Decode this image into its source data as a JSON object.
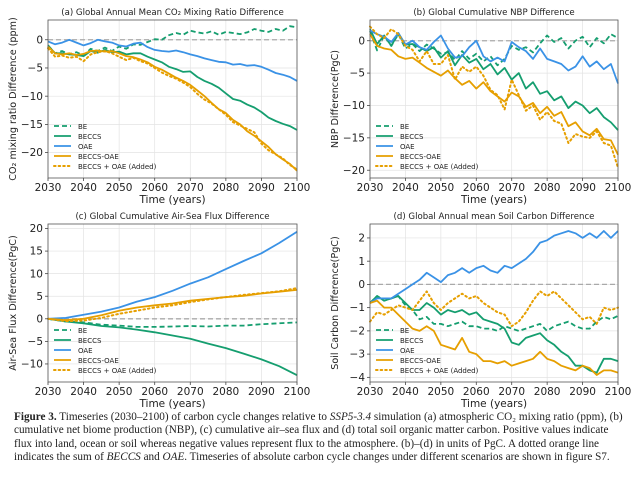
{
  "colors": {
    "BE": "#159e6f",
    "BECCS": "#159e6f",
    "OAE": "#3a92e6",
    "BECCS-OAE": "#e69f00",
    "BECCS + OAE (Added)": "#e69f00",
    "zero_line": "#a9a9a9",
    "grid": "#e3e3e3"
  },
  "chart_data": [
    {
      "id": "a",
      "type": "line",
      "title": "(a) Global Annual Mean CO₂ Mixing Ratio Difference",
      "xlabel": "Time (years)",
      "ylabel": "CO₂ mixing ratio Difference (ppm)",
      "xlim": [
        2030,
        2100
      ],
      "ylim": [
        -24.5,
        3.5
      ],
      "xticks": [
        2030,
        2040,
        2050,
        2060,
        2070,
        2080,
        2090,
        2100
      ],
      "yticks": [
        0,
        -5,
        -10,
        -15,
        -20
      ],
      "grid": true,
      "legend": "lower-left",
      "x": [
        2030,
        2032,
        2034,
        2036,
        2038,
        2040,
        2042,
        2044,
        2046,
        2048,
        2050,
        2052,
        2054,
        2056,
        2058,
        2060,
        2062,
        2064,
        2066,
        2068,
        2070,
        2072,
        2074,
        2076,
        2078,
        2080,
        2082,
        2084,
        2086,
        2088,
        2090,
        2092,
        2094,
        2096,
        2098,
        2100
      ],
      "series": [
        {
          "name": "BE",
          "style": "dashed",
          "values": [
            -1.0,
            -2.4,
            -2.0,
            -2.6,
            -2.2,
            -2.8,
            -1.6,
            -2.0,
            -1.4,
            -2.0,
            -1.2,
            -1.6,
            -0.8,
            -0.9,
            -0.4,
            0.1,
            0.0,
            0.8,
            1.2,
            0.9,
            1.6,
            1.3,
            1.1,
            1.5,
            0.9,
            1.4,
            1.2,
            1.0,
            1.3,
            1.9,
            1.6,
            1.4,
            1.9,
            1.6,
            2.4,
            2.2
          ]
        },
        {
          "name": "BECCS",
          "style": "solid",
          "values": [
            -1.0,
            -2.4,
            -2.4,
            -2.6,
            -2.7,
            -2.9,
            -2.0,
            -2.3,
            -1.8,
            -2.2,
            -2.1,
            -2.6,
            -2.4,
            -2.4,
            -3.0,
            -3.5,
            -4.0,
            -4.8,
            -5.2,
            -5.7,
            -5.6,
            -6.6,
            -7.3,
            -7.8,
            -8.5,
            -9.5,
            -10.5,
            -10.8,
            -11.5,
            -12.0,
            -12.8,
            -13.8,
            -14.4,
            -14.9,
            -15.3,
            -16.0
          ]
        },
        {
          "name": "OAE",
          "style": "solid",
          "values": [
            -0.3,
            -0.8,
            -0.5,
            0.0,
            -0.5,
            -1.0,
            -0.6,
            0.0,
            -0.3,
            -0.5,
            -1.0,
            -1.2,
            -0.7,
            -0.5,
            -1.3,
            -1.8,
            -2.0,
            -2.1,
            -1.9,
            -2.2,
            -2.6,
            -2.9,
            -3.3,
            -3.6,
            -3.9,
            -4.0,
            -4.4,
            -4.3,
            -4.6,
            -4.5,
            -4.8,
            -5.3,
            -5.9,
            -6.2,
            -6.6,
            -7.3
          ]
        },
        {
          "name": "BECCS-OAE",
          "style": "solid",
          "values": [
            -1.2,
            -2.4,
            -2.6,
            -2.4,
            -2.7,
            -2.5,
            -2.0,
            -1.9,
            -2.1,
            -2.0,
            -2.4,
            -2.9,
            -3.1,
            -3.5,
            -4.0,
            -4.8,
            -5.3,
            -6.0,
            -6.7,
            -7.3,
            -8.0,
            -9.0,
            -10.0,
            -11.2,
            -12.3,
            -13.0,
            -14.2,
            -15.0,
            -16.2,
            -17.0,
            -18.0,
            -19.0,
            -20.3,
            -21.2,
            -22.0,
            -23.2
          ]
        },
        {
          "name": "BECCS + OAE (Added)",
          "style": "dotted",
          "values": [
            -1.5,
            -3.0,
            -2.8,
            -3.2,
            -3.0,
            -3.8,
            -2.6,
            -2.2,
            -2.0,
            -2.4,
            -3.0,
            -3.6,
            -3.2,
            -3.8,
            -4.2,
            -5.0,
            -5.8,
            -6.4,
            -6.9,
            -7.6,
            -8.4,
            -9.6,
            -10.6,
            -11.3,
            -12.3,
            -13.3,
            -14.6,
            -15.2,
            -15.8,
            -16.4,
            -18.4,
            -19.6,
            -20.3,
            -21.0,
            -22.2,
            -23.0
          ]
        }
      ]
    },
    {
      "id": "b",
      "type": "line",
      "title": "(b) Global Cumulative NBP Difference",
      "xlabel": "Time (years)",
      "ylabel": "NBP Difference(PgC)",
      "xlim": [
        2030,
        2100
      ],
      "ylim": [
        -21.2,
        3.2
      ],
      "xticks": [
        2030,
        2040,
        2050,
        2060,
        2070,
        2080,
        2090,
        2100
      ],
      "yticks": [
        0,
        -5,
        -10,
        -15,
        -20
      ],
      "grid": true,
      "legend": "lower-left",
      "x": [
        2030,
        2032,
        2034,
        2036,
        2038,
        2040,
        2042,
        2044,
        2046,
        2048,
        2050,
        2052,
        2054,
        2056,
        2058,
        2060,
        2062,
        2064,
        2066,
        2068,
        2070,
        2072,
        2074,
        2076,
        2078,
        2080,
        2082,
        2084,
        2086,
        2088,
        2090,
        2092,
        2094,
        2096,
        2098,
        2100
      ],
      "series": [
        {
          "name": "BE",
          "style": "dashed",
          "values": [
            1.5,
            -1.5,
            0.8,
            -0.8,
            1.0,
            -1.2,
            -0.5,
            -1.6,
            -0.6,
            -1.2,
            -2.0,
            -1.8,
            -3.0,
            -1.6,
            -2.8,
            -2.0,
            -3.2,
            -2.4,
            -3.8,
            -2.8,
            -0.8,
            -1.4,
            -1.0,
            -1.8,
            -0.4,
            0.8,
            -0.2,
            0.4,
            -1.2,
            0.0,
            0.6,
            -1.0,
            0.4,
            -0.4,
            1.0,
            0.4
          ]
        },
        {
          "name": "BECCS",
          "style": "solid",
          "values": [
            1.8,
            -0.5,
            0.8,
            -0.8,
            1.2,
            -0.6,
            -0.5,
            -1.0,
            -1.6,
            -1.0,
            -2.6,
            -1.6,
            -3.8,
            -2.2,
            -3.4,
            -2.8,
            -4.4,
            -3.6,
            -5.2,
            -4.2,
            -6.0,
            -5.0,
            -7.4,
            -6.4,
            -8.2,
            -7.8,
            -9.2,
            -8.6,
            -10.4,
            -9.4,
            -10.0,
            -11.2,
            -10.4,
            -11.8,
            -12.6,
            -13.8
          ]
        },
        {
          "name": "OAE",
          "style": "solid",
          "values": [
            1.6,
            1.0,
            0.6,
            -0.2,
            1.2,
            -0.6,
            0.0,
            -1.0,
            -1.4,
            -0.2,
            0.8,
            -1.2,
            -2.6,
            -2.4,
            -1.0,
            0.0,
            -2.4,
            -3.2,
            -2.6,
            -3.2,
            -0.2,
            -1.0,
            -1.6,
            -2.8,
            -1.2,
            -2.8,
            -3.2,
            -3.6,
            -4.6,
            -4.0,
            -2.4,
            -4.0,
            -3.2,
            -4.4,
            -3.6,
            -6.6
          ]
        },
        {
          "name": "BECCS-OAE",
          "style": "solid",
          "values": [
            1.0,
            -0.8,
            -1.2,
            -1.4,
            -2.4,
            -2.8,
            -2.6,
            -3.4,
            -4.2,
            -4.8,
            -5.4,
            -4.6,
            -5.8,
            -6.8,
            -6.2,
            -7.4,
            -6.4,
            -7.8,
            -8.6,
            -9.4,
            -8.0,
            -8.6,
            -10.2,
            -9.6,
            -11.2,
            -10.2,
            -11.6,
            -11.0,
            -13.2,
            -12.6,
            -14.0,
            -14.6,
            -13.6,
            -15.2,
            -15.4,
            -17.6
          ]
        },
        {
          "name": "BECCS + OAE (Added)",
          "style": "dotted",
          "values": [
            2.2,
            1.0,
            0.4,
            1.8,
            1.0,
            -0.8,
            -1.4,
            -3.2,
            -1.6,
            -3.6,
            -3.6,
            -2.2,
            -6.0,
            -4.0,
            -4.8,
            -4.0,
            -5.4,
            -7.6,
            -8.4,
            -10.6,
            -6.0,
            -8.4,
            -10.8,
            -10.0,
            -12.2,
            -11.0,
            -12.4,
            -12.8,
            -15.8,
            -14.4,
            -14.8,
            -15.0,
            -14.0,
            -15.8,
            -16.2,
            -19.6
          ]
        }
      ]
    },
    {
      "id": "c",
      "type": "line",
      "title": "(c) Global Cumulative Air-Sea Flux Difference",
      "xlabel": "Time (years)",
      "ylabel": "Air-Sea Flux Difference(PgC)",
      "xlim": [
        2030,
        2100
      ],
      "ylim": [
        -14,
        21
      ],
      "xticks": [
        2030,
        2040,
        2050,
        2060,
        2070,
        2080,
        2090,
        2100
      ],
      "yticks": [
        20,
        15,
        10,
        5,
        0,
        -5,
        -10
      ],
      "grid": true,
      "legend": "lower-left",
      "x": [
        2030,
        2035,
        2040,
        2045,
        2050,
        2055,
        2060,
        2065,
        2070,
        2075,
        2080,
        2085,
        2090,
        2095,
        2100
      ],
      "series": [
        {
          "name": "BE",
          "style": "dashed",
          "values": [
            0.0,
            -0.6,
            -0.8,
            -1.3,
            -1.5,
            -1.8,
            -1.8,
            -1.7,
            -1.6,
            -1.7,
            -1.5,
            -1.5,
            -1.2,
            -1.0,
            -0.8
          ]
        },
        {
          "name": "BECCS",
          "style": "solid",
          "values": [
            0.0,
            -0.6,
            -1.0,
            -1.6,
            -1.9,
            -2.4,
            -3.0,
            -3.7,
            -4.4,
            -5.5,
            -6.5,
            -7.7,
            -9.0,
            -10.5,
            -12.5
          ]
        },
        {
          "name": "OAE",
          "style": "solid",
          "values": [
            0.0,
            0.2,
            0.9,
            1.6,
            2.5,
            3.8,
            4.8,
            6.2,
            7.8,
            9.2,
            11.0,
            12.8,
            14.5,
            16.8,
            19.3
          ]
        },
        {
          "name": "BECCS-OAE",
          "style": "solid",
          "values": [
            0.0,
            -0.3,
            0.0,
            0.8,
            1.8,
            2.5,
            3.0,
            3.4,
            4.0,
            4.4,
            4.8,
            5.1,
            5.6,
            6.0,
            6.4
          ]
        },
        {
          "name": "BECCS + OAE (Added)",
          "style": "dotted",
          "values": [
            0.0,
            -0.5,
            -0.4,
            0.2,
            1.1,
            1.8,
            2.5,
            3.0,
            3.7,
            4.3,
            4.8,
            5.3,
            5.7,
            6.1,
            6.8
          ]
        }
      ]
    },
    {
      "id": "d",
      "type": "line",
      "title": "(d) Global Annual mean Soil Carbon Difference",
      "xlabel": "Time (years)",
      "ylabel": "Soil Carbon Difference(PgC)",
      "xlim": [
        2030,
        2100
      ],
      "ylim": [
        -4.2,
        2.6
      ],
      "xticks": [
        2030,
        2040,
        2050,
        2060,
        2070,
        2080,
        2090,
        2100
      ],
      "yticks": [
        2,
        1,
        0,
        -1,
        -2,
        -3,
        -4
      ],
      "grid": true,
      "legend": "lower-left",
      "x": [
        2030,
        2032,
        2034,
        2036,
        2038,
        2040,
        2042,
        2044,
        2046,
        2048,
        2050,
        2052,
        2054,
        2056,
        2058,
        2060,
        2062,
        2064,
        2066,
        2068,
        2070,
        2072,
        2074,
        2076,
        2078,
        2080,
        2082,
        2084,
        2086,
        2088,
        2090,
        2092,
        2094,
        2096,
        2098,
        2100
      ],
      "series": [
        {
          "name": "BE",
          "style": "dashed",
          "values": [
            -0.8,
            -0.5,
            -0.7,
            -0.6,
            -0.5,
            -0.9,
            -1.1,
            -1.5,
            -1.4,
            -1.7,
            -1.7,
            -1.8,
            -1.7,
            -1.6,
            -1.8,
            -1.8,
            -1.9,
            -1.9,
            -2.0,
            -1.8,
            -1.9,
            -2.0,
            -1.9,
            -1.8,
            -1.7,
            -2.0,
            -1.8,
            -1.7,
            -1.6,
            -1.8,
            -1.9,
            -1.9,
            -1.6,
            -1.4,
            -1.5,
            -1.35
          ]
        },
        {
          "name": "BECCS",
          "style": "solid",
          "values": [
            -0.8,
            -0.5,
            -0.7,
            -0.6,
            -0.5,
            -0.8,
            -1.1,
            -1.1,
            -0.8,
            -1.0,
            -1.3,
            -1.1,
            -1.2,
            -1.1,
            -1.3,
            -1.2,
            -1.5,
            -1.6,
            -1.7,
            -1.9,
            -2.5,
            -2.6,
            -2.3,
            -2.2,
            -2.1,
            -2.4,
            -2.6,
            -2.9,
            -3.1,
            -3.5,
            -3.5,
            -3.7,
            -3.8,
            -3.2,
            -3.2,
            -3.3
          ]
        },
        {
          "name": "OAE",
          "style": "solid",
          "values": [
            -0.8,
            -0.6,
            -0.6,
            -0.6,
            -0.4,
            -0.2,
            0.0,
            0.2,
            0.5,
            0.3,
            0.1,
            0.4,
            0.5,
            0.7,
            0.5,
            0.7,
            0.8,
            0.6,
            0.5,
            0.8,
            0.7,
            0.9,
            1.1,
            1.4,
            1.8,
            1.9,
            2.1,
            2.2,
            2.3,
            2.2,
            2.0,
            2.2,
            2.0,
            2.3,
            2.0,
            2.3
          ]
        },
        {
          "name": "BECCS-OAE",
          "style": "solid",
          "values": [
            -0.8,
            -0.7,
            -1.0,
            -1.0,
            -1.3,
            -1.6,
            -1.9,
            -2.0,
            -1.8,
            -2.0,
            -2.6,
            -2.7,
            -2.8,
            -2.3,
            -2.9,
            -3.0,
            -3.3,
            -3.3,
            -3.4,
            -3.3,
            -3.5,
            -3.4,
            -3.3,
            -3.2,
            -2.9,
            -3.2,
            -3.3,
            -3.5,
            -3.6,
            -3.7,
            -3.5,
            -3.6,
            -3.9,
            -3.7,
            -3.7,
            -3.8
          ]
        },
        {
          "name": "BECCS + OAE (Added)",
          "style": "dotted",
          "values": [
            -1.6,
            -1.2,
            -1.3,
            -1.1,
            -0.9,
            -1.0,
            -1.1,
            -0.7,
            -0.3,
            -0.8,
            -1.1,
            -0.8,
            -0.6,
            -0.4,
            -0.6,
            -0.5,
            -0.8,
            -1.0,
            -1.2,
            -1.3,
            -1.8,
            -1.6,
            -1.2,
            -0.7,
            -0.3,
            -0.5,
            -0.3,
            -0.6,
            -0.9,
            -1.2,
            -1.5,
            -1.4,
            -1.7,
            -1.0,
            -1.1,
            -1.0
          ]
        }
      ]
    }
  ],
  "caption": {
    "label": "Figure 3.",
    "parts": [
      {
        "t": " Timeseries (2030–2100) of carbon cycle changes relative to ",
        "i": false
      },
      {
        "t": "SSP5-3.4",
        "i": true
      },
      {
        "t": " simulation (a) atmospheric CO₂ mixing ratio (ppm), (b) cumulative net biome production (NBP), (c) cumulative air–sea flux and (d) total soil organic matter carbon. Positive values indicate flux into land, ocean or soil whereas negative values represent flux to the atmosphere. (b)–(d) in units of PgC. A dotted orange line indicates the sum of ",
        "i": false
      },
      {
        "t": "BECCS",
        "i": true
      },
      {
        "t": " and ",
        "i": false
      },
      {
        "t": "OAE",
        "i": true
      },
      {
        "t": ". Timeseries of absolute carbon cycle changes under different scenarios are shown in figure S7.",
        "i": false
      }
    ]
  }
}
